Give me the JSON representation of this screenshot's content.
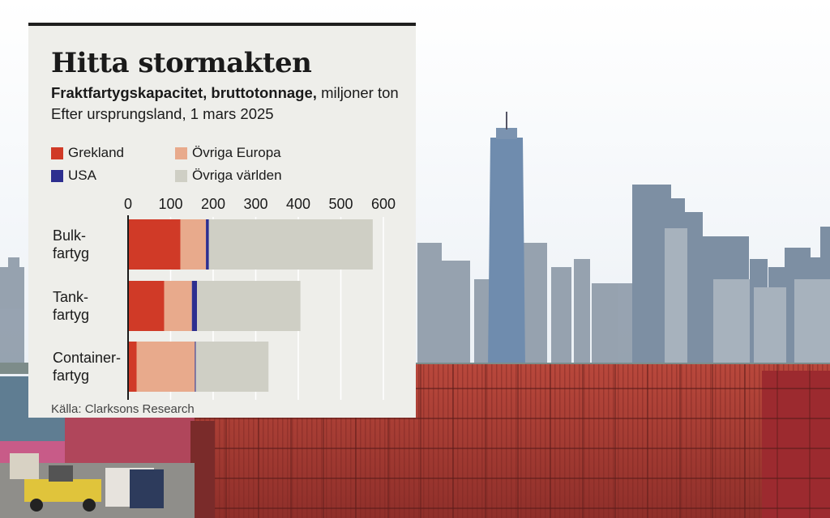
{
  "title": "Hitta stormakten",
  "subtitle_bold": "Fraktfartygskapacitet, bruttotonnage,",
  "subtitle_rest": "miljoner ton",
  "subtitle2": "Efter ursprungsland, 1 mars 2025",
  "source": "Källa: Clarksons Research",
  "colors": {
    "greece": "#d03a27",
    "other_europe": "#e8aa8c",
    "usa": "#2d2e8f",
    "rest_of_world": "#cfcfc5",
    "card_bg": "#eeeeea",
    "axis": "#1a1a1a",
    "grid": "#ffffff"
  },
  "legend": [
    {
      "label": "Grekland",
      "color": "#d03a27"
    },
    {
      "label": "Övriga Europa",
      "color": "#e8aa8c"
    },
    {
      "label": "USA",
      "color": "#2d2e8f"
    },
    {
      "label": "Övriga världen",
      "color": "#cfcfc5"
    }
  ],
  "chart_data": {
    "type": "bar",
    "orientation": "horizontal",
    "stacked": true,
    "categories": [
      [
        "Bulk-",
        "fartyg"
      ],
      [
        "Tank-",
        "fartyg"
      ],
      [
        "Container-",
        "fartyg"
      ]
    ],
    "series": [
      {
        "name": "Grekland",
        "values": [
          123,
          85,
          20
        ]
      },
      {
        "name": "Övriga Europa",
        "values": [
          60,
          65,
          137
        ]
      },
      {
        "name": "USA",
        "values": [
          7,
          12,
          2
        ]
      },
      {
        "name": "Övriga världen",
        "values": [
          385,
          243,
          171
        ]
      }
    ],
    "xlim": [
      0,
      600
    ],
    "xticks": [
      0,
      100,
      200,
      300,
      400,
      500,
      600
    ],
    "xaxis_position": "top",
    "grid": true
  }
}
